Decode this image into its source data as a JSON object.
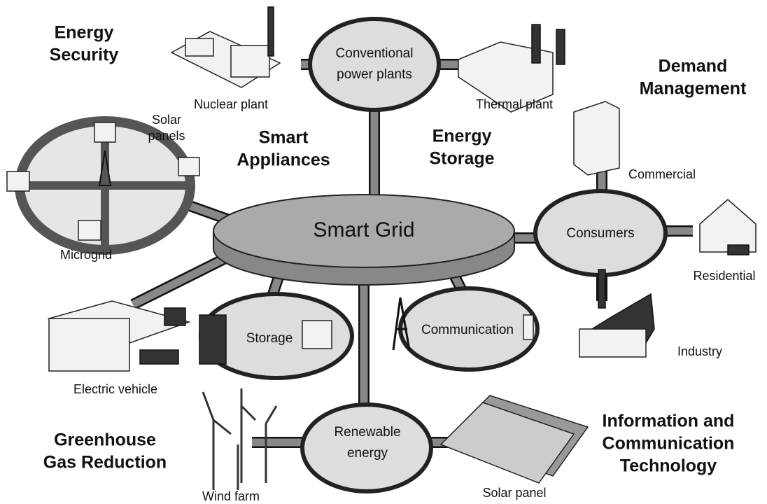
{
  "hub": {
    "label": "Smart Grid"
  },
  "nodes": [
    {
      "lines": [
        "Conventional",
        "power plants"
      ]
    },
    {
      "lines": [
        "Consumers"
      ]
    },
    {
      "lines": [
        "Storage"
      ]
    },
    {
      "lines": [
        "Communication"
      ]
    },
    {
      "lines": [
        "Renewable",
        "energy"
      ]
    }
  ],
  "themes": [
    {
      "lines": [
        "Energy",
        "Security"
      ]
    },
    {
      "lines": [
        "Demand",
        "Management"
      ]
    },
    {
      "lines": [
        "Smart",
        "Appliances"
      ]
    },
    {
      "lines": [
        "Energy",
        "Storage"
      ]
    },
    {
      "lines": [
        "Greenhouse",
        "Gas Reduction"
      ]
    },
    {
      "lines": [
        "Information and",
        "Communication",
        "Technology"
      ]
    }
  ],
  "labels": [
    {
      "lines": [
        "Nuclear plant"
      ]
    },
    {
      "lines": [
        "Thermal plant"
      ]
    },
    {
      "lines": [
        "Commercial"
      ]
    },
    {
      "lines": [
        "Residential"
      ]
    },
    {
      "lines": [
        "Industry"
      ]
    },
    {
      "lines": [
        "Electric vehicle"
      ]
    },
    {
      "lines": [
        "Wind farm"
      ]
    },
    {
      "lines": [
        "Solar panel"
      ]
    },
    {
      "lines": [
        "Microgrid"
      ]
    },
    {
      "lines": [
        "Solar",
        "panels"
      ]
    }
  ]
}
